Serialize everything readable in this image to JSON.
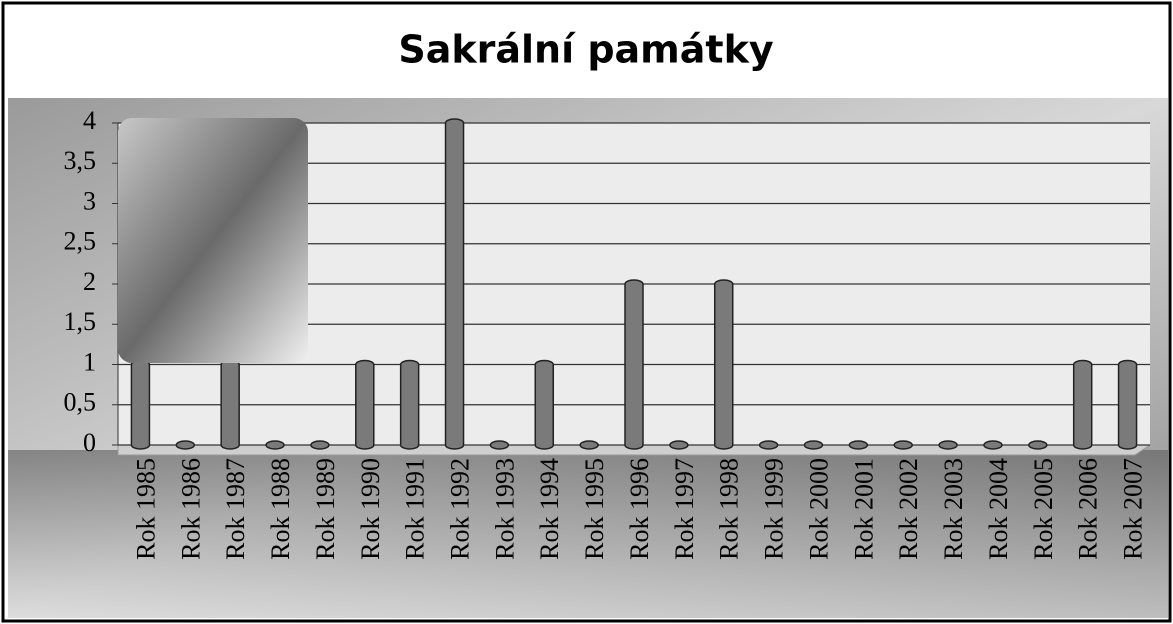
{
  "chart_data": {
    "type": "bar",
    "title": "Sakrální památky",
    "categories": [
      "Rok 1985",
      "Rok 1986",
      "Rok 1987",
      "Rok 1988",
      "Rok 1989",
      "Rok 1990",
      "Rok 1991",
      "Rok 1992",
      "Rok 1993",
      "Rok 1994",
      "Rok 1995",
      "Rok 1996",
      "Rok 1997",
      "Rok 1998",
      "Rok 1999",
      "Rok 2000",
      "Rok 2001",
      "Rok 2002",
      "Rok 2003",
      "Rok 2004",
      "Rok 2005",
      "Rok 2006",
      "Rok 2007"
    ],
    "values": [
      1,
      0,
      1,
      0,
      0,
      1,
      1,
      4,
      0,
      1,
      0,
      2,
      0,
      2,
      0,
      0,
      0,
      0,
      0,
      0,
      0,
      1,
      1
    ],
    "color": "#7a7a7a",
    "ylim": [
      0,
      4
    ],
    "yticks": [
      0,
      {
        "value": 0.5,
        "label": "0,5"
      },
      1,
      {
        "value": 1.5,
        "label": "1,5"
      },
      2,
      {
        "value": 2.5,
        "label": "2,5"
      },
      3,
      {
        "value": 3.5,
        "label": "3,5"
      },
      4
    ],
    "grid": true
  }
}
